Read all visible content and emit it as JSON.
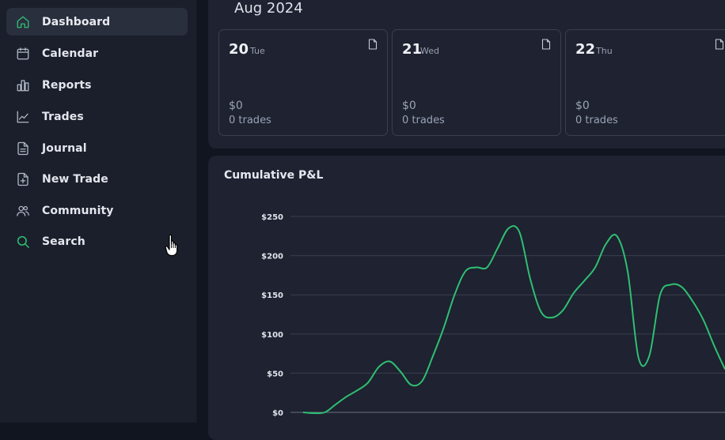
{
  "sidebar": {
    "items": [
      {
        "label": "Dashboard",
        "icon": "home-icon",
        "active": true
      },
      {
        "label": "Calendar",
        "icon": "calendar-icon",
        "active": false
      },
      {
        "label": "Reports",
        "icon": "bar-chart-icon",
        "active": false
      },
      {
        "label": "Trades",
        "icon": "line-chart-icon",
        "active": false
      },
      {
        "label": "Journal",
        "icon": "journal-icon",
        "active": false
      },
      {
        "label": "New Trade",
        "icon": "file-plus-icon",
        "active": false
      },
      {
        "label": "Community",
        "icon": "users-icon",
        "active": false
      },
      {
        "label": "Search",
        "icon": "search-icon",
        "active": false
      }
    ]
  },
  "week": {
    "month_title": "Aug 2024",
    "days": [
      {
        "day": "20",
        "weekday": "Tue",
        "pnl": "$0",
        "trades": "0 trades"
      },
      {
        "day": "21",
        "weekday": "Wed",
        "pnl": "$0",
        "trades": "0 trades"
      },
      {
        "day": "22",
        "weekday": "Thu",
        "pnl": "$0",
        "trades": "0 trades"
      }
    ]
  },
  "colors": {
    "accent": "#2fbf71",
    "panel": "#1e2231",
    "sidebar": "#1b1f2c",
    "active_item": "#2a2f3e"
  },
  "chart_data": {
    "type": "line",
    "title": "Cumulative P&L",
    "ylabel": "",
    "xlabel": "",
    "ylim": [
      0,
      250
    ],
    "y_ticks": [
      "$0",
      "$50",
      "$100",
      "$150",
      "$200",
      "$250"
    ],
    "grid": true,
    "series": [
      {
        "color": "#2fbf71",
        "values": [
          0,
          -1,
          0,
          10,
          20,
          28,
          38,
          58,
          65,
          52,
          35,
          40,
          72,
          108,
          150,
          180,
          185,
          185,
          210,
          235,
          230,
          170,
          128,
          121,
          130,
          152,
          168,
          185,
          215,
          225,
          180,
          70,
          72,
          150,
          163,
          160,
          142,
          118,
          85,
          55
        ]
      }
    ]
  }
}
